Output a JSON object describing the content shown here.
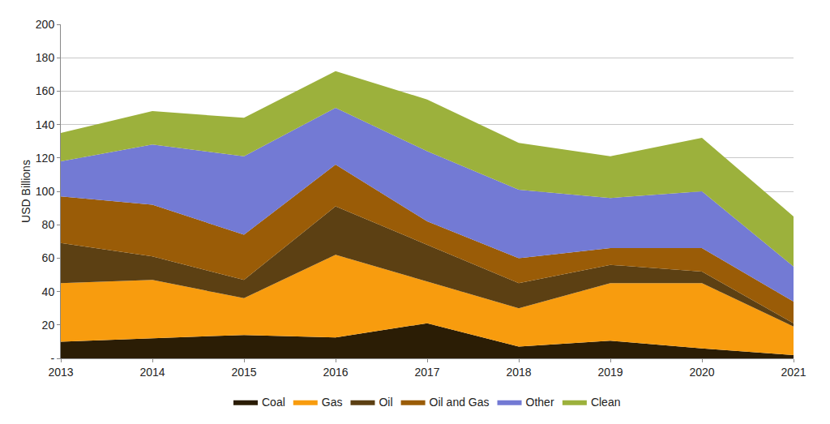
{
  "chart_data": {
    "type": "area",
    "stacked": true,
    "y_label": "USD Billions",
    "x": [
      2013,
      2014,
      2015,
      2016,
      2017,
      2018,
      2019,
      2020,
      2021
    ],
    "xlim": [
      2013,
      2021
    ],
    "xticks": [
      2013,
      2014,
      2015,
      2016,
      2017,
      2018,
      2019,
      2020,
      2021
    ],
    "ylim": [
      0,
      200
    ],
    "yticks": [
      {
        "value": 0,
        "label": "-"
      },
      20,
      40,
      60,
      80,
      100,
      120,
      140,
      160,
      180,
      200
    ],
    "grid": true,
    "legend": "bottom",
    "series": [
      {
        "name": "Coal",
        "color": "#2b1d05",
        "values": [
          10,
          12,
          14,
          12.5,
          21,
          7,
          10.5,
          6,
          2
        ]
      },
      {
        "name": "Gas",
        "color": "#f89c0e",
        "values": [
          35,
          35,
          22,
          49.5,
          25,
          23,
          34.5,
          39,
          17
        ]
      },
      {
        "name": "Oil",
        "color": "#5c4013",
        "values": [
          24,
          14,
          11,
          29,
          22,
          15,
          11,
          7,
          2
        ]
      },
      {
        "name": "Oil and Gas",
        "color": "#9a5c07",
        "values": [
          28,
          31,
          27,
          25,
          14,
          15,
          10,
          14,
          13
        ]
      },
      {
        "name": "Other",
        "color": "#737ad4",
        "values": [
          21,
          36,
          47,
          34,
          42,
          41,
          30,
          34,
          21
        ]
      },
      {
        "name": "Clean",
        "color": "#9cb13c",
        "values": [
          17,
          20,
          23,
          22,
          31,
          28,
          25,
          32,
          30
        ]
      }
    ]
  }
}
